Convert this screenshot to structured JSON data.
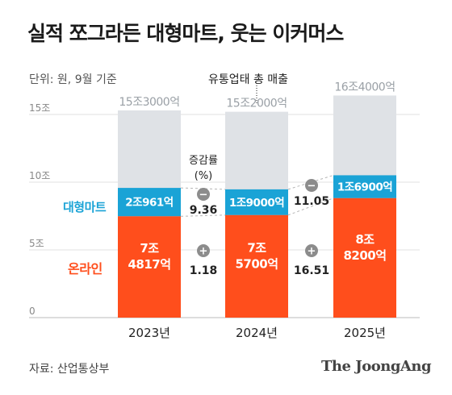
{
  "title": "실적 쪼그라든 대형마트, 웃는 이커머스",
  "unit_note": "단위: 원, 9월 기준",
  "total_series_label": "유통업태 총 매출",
  "source": "자료: 산업통상부",
  "brand": "The JoongAng",
  "colors": {
    "total": "#dfe2e6",
    "mart": "#1aa3d6",
    "online": "#ff4e1c",
    "total_text": "#9aa0a6",
    "mart_label": "#1aa3d6",
    "online_label": "#ff4e1c",
    "badge": "#8c8c8c"
  },
  "chart_data": {
    "type": "bar",
    "stacked": true,
    "categories": [
      "2023년",
      "2024년",
      "2025년"
    ],
    "ylim": [
      0,
      15
    ],
    "y_ticks": [
      {
        "value": 0,
        "label": "0"
      },
      {
        "value": 5,
        "label": "5조"
      },
      {
        "value": 10,
        "label": "10조"
      },
      {
        "value": 15,
        "label": "15조"
      }
    ],
    "grid": true,
    "totals": {
      "values": [
        15.3,
        15.2,
        16.4
      ],
      "labels": [
        "15조3000억",
        "15조2000억",
        "16조4000억"
      ]
    },
    "series": [
      {
        "name": "온라인",
        "values": [
          7.4817,
          7.57,
          8.82
        ],
        "labels": [
          "7조\n4817억",
          "7조\n5700억",
          "8조\n8200억"
        ]
      },
      {
        "name": "대형마트",
        "values": [
          2.0961,
          1.9,
          1.69
        ],
        "labels": [
          "2조961억",
          "1조9000억",
          "1조6900억"
        ]
      }
    ],
    "change_rate": {
      "title_line1": "증감률",
      "title_line2": "(%)",
      "mart": [
        {
          "sign": "−",
          "value": "9.36"
        },
        {
          "sign": "−",
          "value": "11.05"
        }
      ],
      "online": [
        {
          "sign": "+",
          "value": "1.18"
        },
        {
          "sign": "+",
          "value": "16.51"
        }
      ]
    }
  }
}
